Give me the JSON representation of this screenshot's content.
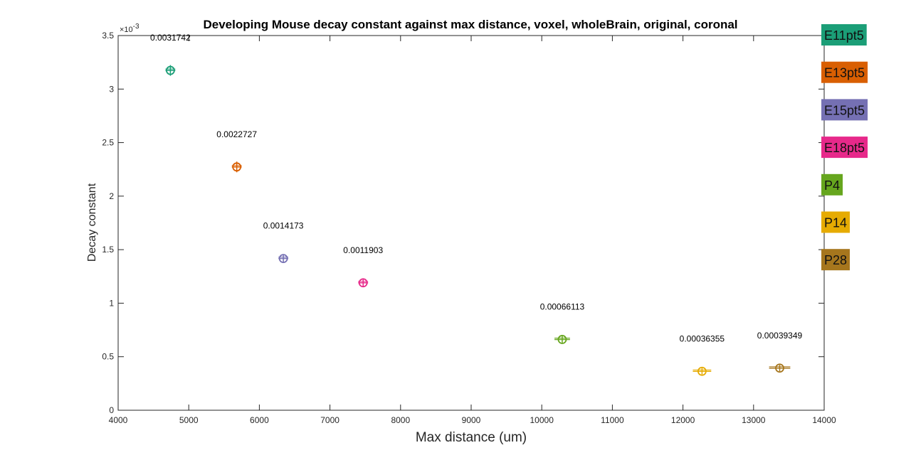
{
  "chart_data": {
    "type": "scatter",
    "title": "Developing Mouse decay constant against max distance, voxel, wholeBrain, original, coronal",
    "xlabel": "Max distance (um)",
    "ylabel": "Decay constant",
    "xlim": [
      4000,
      14000
    ],
    "ylim": [
      0,
      0.0035
    ],
    "xticks": [
      "4000",
      "5000",
      "6000",
      "7000",
      "8000",
      "9000",
      "10000",
      "11000",
      "12000",
      "13000",
      "14000"
    ],
    "yticks": [
      "0",
      "0.5",
      "1",
      "1.5",
      "2",
      "2.5",
      "3",
      "3.5"
    ],
    "ytick_values": [
      0,
      0.0005,
      0.001,
      0.0015,
      0.002,
      0.0025,
      0.003,
      0.0035
    ],
    "y_exponent": "×10",
    "y_exponent_power": "-3",
    "grid": false,
    "legend_placement": "right, outside plot",
    "series": [
      {
        "name": "E11pt5",
        "x": 4740,
        "y": 0.0031742,
        "label": "0.0031742",
        "color": "#1b9e77",
        "xerr": 70,
        "yerr": 5e-05
      },
      {
        "name": "E13pt5",
        "x": 5680,
        "y": 0.0022727,
        "label": "0.0022727",
        "color": "#d95f02",
        "xerr": 70,
        "yerr": 5e-05
      },
      {
        "name": "E15pt5",
        "x": 6340,
        "y": 0.0014173,
        "label": "0.0014173",
        "color": "#7570b3",
        "xerr": 70,
        "yerr": 4e-05
      },
      {
        "name": "E18pt5",
        "x": 7470,
        "y": 0.0011903,
        "label": "0.0011903",
        "color": "#e7298a",
        "xerr": 70,
        "yerr": 4e-05
      },
      {
        "name": "P4",
        "x": 10290,
        "y": 0.00066113,
        "label": "0.00066113",
        "color": "#66a61e",
        "xerr": 110,
        "yerr": 3e-05
      },
      {
        "name": "P14",
        "x": 12270,
        "y": 0.00036355,
        "label": "0.00036355",
        "color": "#e6ab02",
        "xerr": 130,
        "yerr": 3e-05
      },
      {
        "name": "P28",
        "x": 13370,
        "y": 0.00039349,
        "label": "0.00039349",
        "color": "#a6761d",
        "xerr": 150,
        "yerr": 3e-05
      }
    ]
  }
}
